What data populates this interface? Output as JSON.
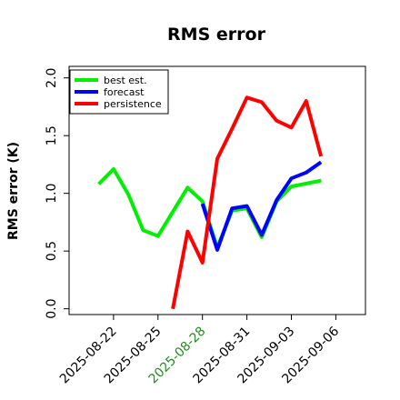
{
  "chart_data": {
    "type": "line",
    "title": "RMS error",
    "xlabel": "",
    "ylabel": "RMS error (K)",
    "ylim": [
      -0.05,
      2.1
    ],
    "yticks": [
      "0.0",
      "0.5",
      "1.0",
      "1.5",
      "2.0"
    ],
    "xlim": [
      "2025-08-19",
      "2025-09-08"
    ],
    "xticks": [
      {
        "date": "2025-08-22",
        "label": "2025-08-22",
        "color": "#000000"
      },
      {
        "date": "2025-08-25",
        "label": "2025-08-25",
        "color": "#000000"
      },
      {
        "date": "2025-08-28",
        "label": "2025-08-28",
        "color": "#228b22"
      },
      {
        "date": "2025-08-31",
        "label": "2025-08-31",
        "color": "#000000"
      },
      {
        "date": "2025-09-03",
        "label": "2025-09-03",
        "color": "#000000"
      },
      {
        "date": "2025-09-06",
        "label": "2025-09-06",
        "color": "#000000"
      }
    ],
    "legend_position": "top-left",
    "series": [
      {
        "name": "best est.",
        "color": "#00ee00",
        "x": [
          "2025-08-21",
          "2025-08-22",
          "2025-08-23",
          "2025-08-24",
          "2025-08-25",
          "2025-08-27",
          "2025-08-28",
          "2025-08-29",
          "2025-08-30",
          "2025-08-31",
          "2025-09-01",
          "2025-09-02",
          "2025-09-03",
          "2025-09-05"
        ],
        "y": [
          1.08,
          1.21,
          0.99,
          0.68,
          0.63,
          1.05,
          0.93,
          0.53,
          0.85,
          0.87,
          0.62,
          0.93,
          1.06,
          1.11
        ]
      },
      {
        "name": "forecast",
        "color": "#0000ff",
        "x": [
          "2025-08-28",
          "2025-08-29",
          "2025-08-30",
          "2025-08-31",
          "2025-09-01",
          "2025-09-02",
          "2025-09-03",
          "2025-09-04",
          "2025-09-05"
        ],
        "y": [
          0.91,
          0.51,
          0.87,
          0.89,
          0.64,
          0.94,
          1.13,
          1.18,
          1.27
        ]
      },
      {
        "name": "persistence",
        "color": "#ff0000",
        "x": [
          "2025-08-26",
          "2025-08-27",
          "2025-08-28",
          "2025-08-29",
          "2025-08-30",
          "2025-08-31",
          "2025-09-01",
          "2025-09-02",
          "2025-09-03",
          "2025-09-04",
          "2025-09-05"
        ],
        "y": [
          0.0,
          0.67,
          0.4,
          1.3,
          1.56,
          1.83,
          1.79,
          1.63,
          1.57,
          1.8,
          1.32
        ]
      }
    ]
  }
}
